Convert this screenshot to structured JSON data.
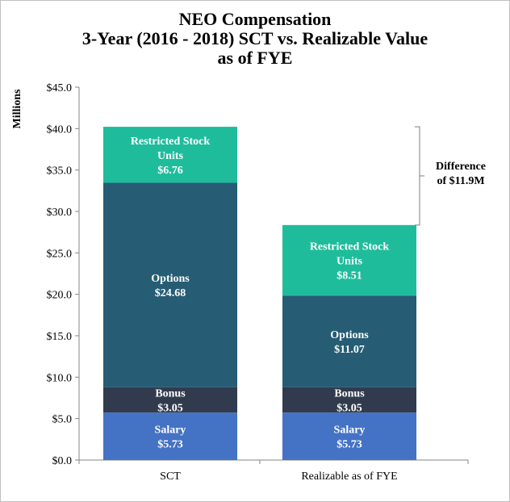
{
  "chart_data": {
    "type": "bar",
    "stacked": true,
    "title_lines": [
      "NEO Compensation",
      "3-Year (2016 - 2018)  SCT vs. Realizable Value",
      "as of FYE"
    ],
    "ylabel": "Millions",
    "ylim": [
      0,
      45
    ],
    "yticks": [
      "$0.0",
      "$5.0",
      "$10.0",
      "$15.0",
      "$20.0",
      "$25.0",
      "$30.0",
      "$35.0",
      "$40.0",
      "$45.0"
    ],
    "ytick_values": [
      0,
      5,
      10,
      15,
      20,
      25,
      30,
      35,
      40,
      45
    ],
    "categories": [
      "SCT",
      "Realizable as of FYE"
    ],
    "grid": false,
    "series": [
      {
        "name": "Salary",
        "label_lines": [
          "Salary"
        ],
        "values": [
          5.73,
          5.73
        ],
        "display": [
          "$5.73",
          "$5.73"
        ],
        "color": "#4472c4"
      },
      {
        "name": "Bonus",
        "label_lines": [
          "Bonus"
        ],
        "values": [
          3.05,
          3.05
        ],
        "display": [
          "$3.05",
          "$3.05"
        ],
        "color": "#323b4e"
      },
      {
        "name": "Options",
        "label_lines": [
          "Options"
        ],
        "values": [
          24.68,
          11.07
        ],
        "display": [
          "$24.68",
          "$11.07"
        ],
        "color": "#265c74"
      },
      {
        "name": "Restricted Stock Units",
        "label_lines": [
          "Restricted Stock",
          "Units"
        ],
        "values": [
          6.76,
          8.51
        ],
        "display": [
          "$6.76",
          "$8.51"
        ],
        "color": "#1fbc9c"
      }
    ],
    "annotation": {
      "lines": [
        "Difference",
        "of $11.9M"
      ]
    }
  }
}
